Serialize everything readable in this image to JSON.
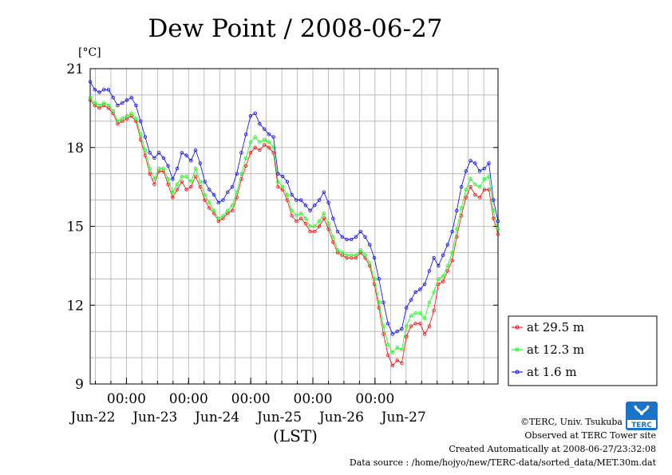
{
  "chart_data": {
    "type": "line",
    "title": "Dew Point / 2008-06-27",
    "ylabel": "[°C]",
    "xlabel": "(LST)",
    "ylim": [
      9,
      21
    ],
    "yticks": [
      9,
      12,
      15,
      18,
      21
    ],
    "xlim": [
      "2008-06-21T10:00",
      "2008-06-27T23:30"
    ],
    "x_ticks": [
      "2008-06-22T00:00",
      "2008-06-23T00:00",
      "2008-06-24T00:00",
      "2008-06-25T00:00",
      "2008-06-26T00:00"
    ],
    "x_tick_time_label": "00:00",
    "x_day_labels": [
      {
        "t": "2008-06-22T00:00",
        "label": "Jun-22"
      },
      {
        "t": "2008-06-23T00:00",
        "label": "Jun-23"
      },
      {
        "t": "2008-06-24T00:00",
        "label": "Jun-24"
      },
      {
        "t": "2008-06-25T00:00",
        "label": "Jun-25"
      },
      {
        "t": "2008-06-26T00:00",
        "label": "Jun-26"
      },
      {
        "t": "2008-06-27T00:00",
        "label": "Jun-27"
      }
    ],
    "grid": true,
    "legend": "right",
    "time_step_minutes": 30,
    "series": [
      {
        "name": "at 29.5 m",
        "color": "#ff0000",
        "values": [
          19.8,
          19.6,
          19.5,
          19.6,
          19.5,
          19.3,
          18.9,
          19.0,
          19.1,
          19.2,
          19.0,
          18.3,
          17.7,
          17.0,
          16.6,
          17.1,
          17.1,
          16.6,
          16.1,
          16.4,
          16.7,
          16.4,
          16.5,
          16.9,
          16.5,
          16.0,
          15.7,
          15.5,
          15.2,
          15.3,
          15.5,
          15.6,
          16.1,
          16.8,
          17.3,
          17.8,
          18.0,
          17.9,
          18.1,
          18.0,
          17.8,
          16.5,
          16.4,
          16.0,
          15.4,
          15.2,
          15.3,
          15.1,
          14.8,
          14.8,
          15.0,
          15.3,
          14.9,
          14.4,
          14.0,
          13.9,
          13.8,
          13.8,
          13.8,
          14.0,
          13.8,
          13.5,
          12.8,
          11.9,
          10.9,
          10.1,
          9.7,
          9.9,
          9.8,
          10.8,
          11.2,
          11.3,
          11.3,
          10.9,
          11.2,
          11.8,
          12.8,
          12.9,
          13.3,
          13.7,
          14.6,
          15.4,
          16.1,
          16.5,
          16.2,
          16.1,
          16.4,
          16.4,
          15.3,
          14.7
        ]
      },
      {
        "name": "at 12.3 m",
        "color": "#00ff00",
        "values": [
          19.9,
          19.7,
          19.6,
          19.7,
          19.6,
          19.4,
          19.0,
          19.1,
          19.2,
          19.3,
          19.1,
          18.5,
          17.9,
          17.2,
          16.8,
          17.2,
          17.2,
          16.8,
          16.3,
          16.6,
          16.9,
          16.9,
          16.7,
          17.2,
          16.7,
          16.2,
          15.9,
          15.6,
          15.3,
          15.4,
          15.6,
          15.8,
          16.3,
          17.0,
          17.6,
          18.2,
          18.4,
          18.2,
          18.3,
          18.2,
          18.0,
          16.7,
          16.5,
          16.2,
          15.6,
          15.4,
          15.5,
          15.3,
          15.0,
          15.0,
          15.2,
          15.5,
          15.1,
          14.6,
          14.1,
          14.0,
          13.9,
          13.9,
          13.9,
          14.1,
          13.9,
          13.6,
          13.0,
          12.1,
          11.2,
          10.5,
          10.2,
          10.4,
          10.3,
          11.2,
          11.6,
          11.7,
          11.7,
          11.5,
          12.1,
          12.5,
          13.0,
          13.1,
          13.5,
          14.0,
          14.9,
          15.7,
          16.4,
          16.8,
          16.6,
          16.5,
          16.8,
          16.9,
          15.6,
          14.9
        ]
      },
      {
        "name": "at 1.6 m",
        "color": "#0000ff",
        "values": [
          20.5,
          20.2,
          20.1,
          20.2,
          20.2,
          19.9,
          19.6,
          19.7,
          19.8,
          19.9,
          19.6,
          19.0,
          18.4,
          17.8,
          17.6,
          17.8,
          17.6,
          17.3,
          16.8,
          17.2,
          17.8,
          17.7,
          17.5,
          17.9,
          17.4,
          16.7,
          16.4,
          16.2,
          15.9,
          16.0,
          16.3,
          16.5,
          17.0,
          17.8,
          18.5,
          19.2,
          19.3,
          18.9,
          18.7,
          18.5,
          18.4,
          17.0,
          16.9,
          16.7,
          16.2,
          16.0,
          16.0,
          15.8,
          15.6,
          15.8,
          16.0,
          16.3,
          15.9,
          15.3,
          14.8,
          14.6,
          14.5,
          14.5,
          14.6,
          14.8,
          14.6,
          14.3,
          13.8,
          13.0,
          12.1,
          11.3,
          10.9,
          11.0,
          11.1,
          11.9,
          12.2,
          12.5,
          12.6,
          12.8,
          13.3,
          13.8,
          13.5,
          13.9,
          14.3,
          14.8,
          15.6,
          16.5,
          17.1,
          17.5,
          17.4,
          17.1,
          17.2,
          17.4,
          16.0,
          15.2
        ]
      }
    ]
  },
  "footer": {
    "copyright": "©TERC, Univ. Tsukuba",
    "observed": "Observed at TERC Tower site",
    "created": "Created Automatically at 2008-06-27/23:32:08",
    "source": "Data source : /home/hojyo/new/TERC-data/sorted_data/MET.30m.dat"
  },
  "logo": {
    "text": "TERC",
    "color": "#1a73c8"
  }
}
